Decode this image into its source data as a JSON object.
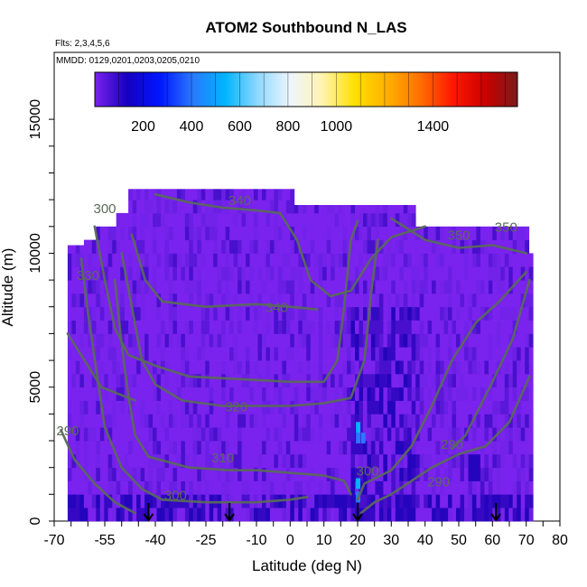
{
  "chart_data": {
    "type": "heatmap",
    "title": "ATOM2 Southbound N_LAS",
    "flights_label": "Flts: 2,3,4,5,6",
    "dates_label": "MMDD: 0129,0201,0203,0205,0210",
    "xlabel": "Latitude (deg N)",
    "ylabel": "Altitude (m)",
    "xlim": [
      -70,
      80
    ],
    "ylim": [
      0,
      17500
    ],
    "x_tick_labels": [
      "-70",
      "-55",
      "-40",
      "-25",
      "-10",
      "0",
      "10",
      "20",
      "30",
      "40",
      "50",
      "60",
      "70",
      "80"
    ],
    "x_tick_values": [
      -70,
      -55,
      -40,
      -25,
      -10,
      0,
      10,
      20,
      30,
      40,
      50,
      60,
      70,
      80
    ],
    "y_tick_labels": [
      "0",
      "5000",
      "10000",
      "15000"
    ],
    "y_tick_values": [
      0,
      5000,
      10000,
      15000
    ],
    "colorbar": {
      "range": [
        0,
        1750
      ],
      "tick_labels": [
        "200",
        "400",
        "600",
        "800",
        "1000",
        "1400"
      ],
      "tick_values": [
        200,
        400,
        600,
        800,
        1000,
        1400
      ],
      "colors": [
        "#7a22ee",
        "#1600c0",
        "#0016ff",
        "#2a78ff",
        "#00b4ff",
        "#8fd8ff",
        "#eef6ff",
        "#fff4b0",
        "#ffe000",
        "#ffb000",
        "#ff7000",
        "#ff1800",
        "#cc0000",
        "#7a1a1a"
      ]
    },
    "contour_labels": [
      "340",
      "350",
      "350",
      "340",
      "320",
      "310",
      "300",
      "290",
      "290",
      "290",
      "300",
      "300",
      "330"
    ],
    "flight_markers_latitude": [
      -42,
      -18,
      20,
      61
    ]
  }
}
